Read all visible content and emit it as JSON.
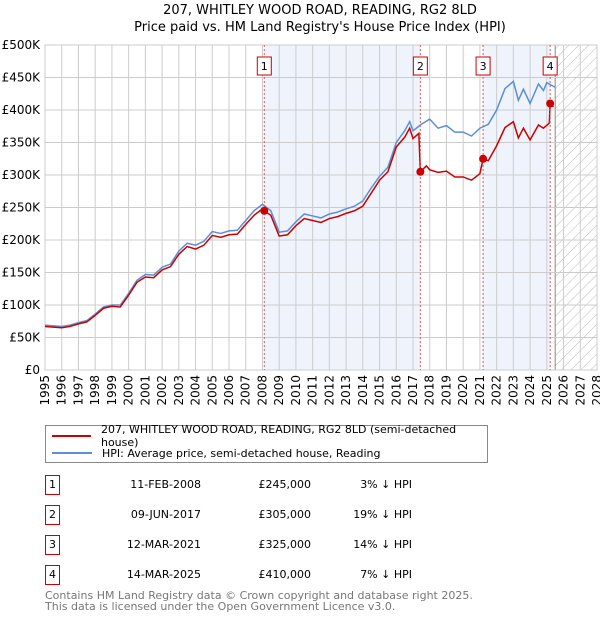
{
  "chart_data": {
    "type": "line",
    "title": "207, WHITLEY WOOD ROAD, READING, RG2 8LD",
    "subtitle": "Price paid vs. HM Land Registry's House Price Index (HPI)",
    "xlim": [
      1995,
      2028
    ],
    "ylim": [
      0,
      500000
    ],
    "y_ticks": [
      0,
      50000,
      100000,
      150000,
      200000,
      250000,
      300000,
      350000,
      400000,
      450000,
      500000
    ],
    "y_tick_labels": [
      "£0",
      "£50K",
      "£100K",
      "£150K",
      "£200K",
      "£250K",
      "£300K",
      "£350K",
      "£400K",
      "£450K",
      "£500K"
    ],
    "x_tick_labels": [
      "1995",
      "1996",
      "1997",
      "1998",
      "1999",
      "2000",
      "2001",
      "2002",
      "2003",
      "2004",
      "2005",
      "2006",
      "2007",
      "2008",
      "2009",
      "2010",
      "2011",
      "2012",
      "2013",
      "2014",
      "2015",
      "2016",
      "2017",
      "2018",
      "2019",
      "2020",
      "2021",
      "2022",
      "2023",
      "2024",
      "2025",
      "2026",
      "2027",
      "2028"
    ],
    "grid": true,
    "forecast_start": 2025.5,
    "shaded_spans": [
      [
        2008.11,
        2017.44
      ],
      [
        2021.19,
        2025.2
      ]
    ],
    "series": [
      {
        "name": "207, WHITLEY WOOD ROAD, READING, RG2 8LD (semi-detached house)",
        "color": "#cc0000",
        "x": [
          1995,
          1996,
          1996.5,
          1997,
          1997.5,
          1998,
          1998.5,
          1999,
          1999.5,
          2000,
          2000.5,
          2001,
          2001.5,
          2002,
          2002.5,
          2003,
          2003.5,
          2004,
          2004.5,
          2005,
          2005.5,
          2006,
          2006.5,
          2007,
          2007.5,
          2008,
          2008.11,
          2008.5,
          2009,
          2009.5,
          2010,
          2010.5,
          2011,
          2011.5,
          2012,
          2012.5,
          2013,
          2013.5,
          2014,
          2014.5,
          2015,
          2015.5,
          2016,
          2016.5,
          2016.8,
          2017,
          2017.35,
          2017.44,
          2017.8,
          2018,
          2018.5,
          2019,
          2019.5,
          2020,
          2020.5,
          2021,
          2021.19,
          2021.5,
          2022,
          2022.5,
          2023,
          2023.3,
          2023.6,
          2024,
          2024.5,
          2024.8,
          2025.15,
          2025.2,
          2025.4
        ],
        "y": [
          67000,
          65000,
          67000,
          71000,
          74000,
          84000,
          95000,
          98000,
          97000,
          115000,
          135000,
          143000,
          142000,
          154000,
          159000,
          178000,
          190000,
          186000,
          192000,
          207000,
          204000,
          208000,
          209000,
          224000,
          238000,
          248000,
          245000,
          238000,
          206000,
          208000,
          222000,
          233000,
          230000,
          227000,
          233000,
          236000,
          241000,
          245000,
          252000,
          272000,
          292000,
          305000,
          343000,
          358000,
          372000,
          356000,
          364000,
          305000,
          314000,
          308000,
          304000,
          306000,
          297000,
          297000,
          292000,
          302000,
          325000,
          322000,
          345000,
          373000,
          382000,
          357000,
          372000,
          354000,
          377000,
          372000,
          380000,
          410000,
          405000
        ]
      },
      {
        "name": "HPI: Average price, semi-detached house, Reading",
        "color": "#5b8fd6",
        "x": [
          1995,
          1996,
          1996.5,
          1997,
          1997.5,
          1998,
          1998.5,
          1999,
          1999.5,
          2000,
          2000.5,
          2001,
          2001.5,
          2002,
          2002.5,
          2003,
          2003.5,
          2004,
          2004.5,
          2005,
          2005.5,
          2006,
          2006.5,
          2007,
          2007.5,
          2008,
          2008.5,
          2009,
          2009.5,
          2010,
          2010.5,
          2011,
          2011.5,
          2012,
          2012.5,
          2013,
          2013.5,
          2014,
          2014.5,
          2015,
          2015.5,
          2016,
          2016.5,
          2016.8,
          2017,
          2017.5,
          2018,
          2018.5,
          2019,
          2019.5,
          2020,
          2020.5,
          2021,
          2021.5,
          2022,
          2022.5,
          2023,
          2023.3,
          2023.6,
          2024,
          2024.5,
          2024.8,
          2025,
          2025.5
        ],
        "y": [
          69000,
          67000,
          69000,
          73000,
          76000,
          86000,
          97000,
          100000,
          100000,
          118000,
          138000,
          147000,
          146000,
          158000,
          163000,
          183000,
          195000,
          192000,
          198000,
          213000,
          210000,
          214000,
          215000,
          230000,
          245000,
          255000,
          245000,
          212000,
          214000,
          228000,
          240000,
          237000,
          234000,
          240000,
          243000,
          248000,
          252000,
          260000,
          280000,
          298000,
          312000,
          350000,
          368000,
          382000,
          368000,
          378000,
          386000,
          372000,
          376000,
          366000,
          366000,
          360000,
          372000,
          378000,
          400000,
          433000,
          444000,
          415000,
          432000,
          410000,
          440000,
          430000,
          442000,
          435000
        ]
      }
    ],
    "sales": [
      {
        "label": "1",
        "x": 2008.11,
        "y": 245000,
        "date": "11-FEB-2008",
        "price": "£245,000",
        "hpi": "3% ↓ HPI"
      },
      {
        "label": "2",
        "x": 2017.44,
        "y": 305000,
        "date": "09-JUN-2017",
        "price": "£305,000",
        "hpi": "19% ↓ HPI"
      },
      {
        "label": "3",
        "x": 2021.19,
        "y": 325000,
        "date": "12-MAR-2021",
        "price": "£325,000",
        "hpi": "14% ↓ HPI"
      },
      {
        "label": "4",
        "x": 2025.2,
        "y": 410000,
        "date": "14-MAR-2025",
        "price": "£410,000",
        "hpi": "7% ↓ HPI"
      }
    ]
  },
  "footer": {
    "line1": "Contains HM Land Registry data © Crown copyright and database right 2025.",
    "line2": "This data is licensed under the Open Government Licence v3.0."
  }
}
